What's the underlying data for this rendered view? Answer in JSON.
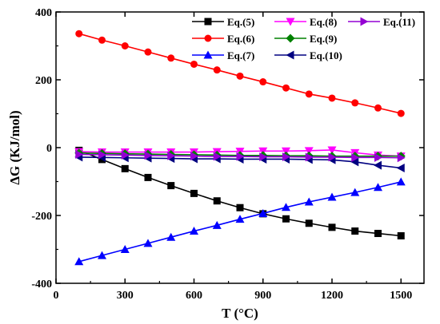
{
  "chart_data": {
    "type": "line",
    "xlabel": "T (°C)",
    "ylabel": "ΔG (KJ/mol)",
    "xlim": [
      0,
      1600
    ],
    "ylim": [
      -400,
      400
    ],
    "xticks": [
      0,
      300,
      600,
      900,
      1200,
      1500
    ],
    "yticks": [
      -400,
      -200,
      0,
      200,
      400
    ],
    "grid": false,
    "legend_position": "top-right",
    "x": [
      100,
      200,
      300,
      400,
      500,
      600,
      700,
      800,
      900,
      1000,
      1100,
      1200,
      1300,
      1400,
      1500
    ],
    "series": [
      {
        "name": "Eq.(5)",
        "color": "#000000",
        "marker": "square",
        "values": [
          -8,
          -35,
          -62,
          -88,
          -112,
          -135,
          -157,
          -177,
          -195,
          -210,
          -223,
          -235,
          -246,
          -253,
          -260
        ]
      },
      {
        "name": "Eq.(6)",
        "color": "#ff0000",
        "marker": "circle",
        "values": [
          336,
          317,
          300,
          282,
          264,
          246,
          229,
          211,
          194,
          176,
          158,
          146,
          132,
          117,
          101
        ]
      },
      {
        "name": "Eq.(7)",
        "color": "#0000ff",
        "marker": "triangle-up",
        "values": [
          -336,
          -318,
          -300,
          -282,
          -264,
          -246,
          -229,
          -211,
          -194,
          -176,
          -160,
          -146,
          -132,
          -117,
          -101
        ]
      },
      {
        "name": "Eq.(8)",
        "color": "#ff00ff",
        "marker": "triangle-down",
        "values": [
          -12,
          -13,
          -13,
          -13,
          -13,
          -13,
          -12,
          -11,
          -10,
          -10,
          -9,
          -7,
          -15,
          -22,
          -25
        ]
      },
      {
        "name": "Eq.(9)",
        "color": "#008000",
        "marker": "diamond",
        "values": [
          -16,
          -17,
          -18,
          -19,
          -20,
          -21,
          -22,
          -23,
          -23,
          -24,
          -24,
          -25,
          -25,
          -25,
          -25
        ]
      },
      {
        "name": "Eq.(10)",
        "color": "#000080",
        "marker": "triangle-left",
        "values": [
          -28,
          -29,
          -30,
          -31,
          -32,
          -33,
          -33,
          -34,
          -34,
          -34,
          -35,
          -36,
          -42,
          -52,
          -60
        ]
      },
      {
        "name": "Eq.(11)",
        "color": "#9400d3",
        "marker": "triangle-right",
        "values": [
          -20,
          -21,
          -22,
          -23,
          -24,
          -25,
          -26,
          -26,
          -27,
          -27,
          -28,
          -28,
          -29,
          -29,
          -30
        ]
      }
    ]
  }
}
